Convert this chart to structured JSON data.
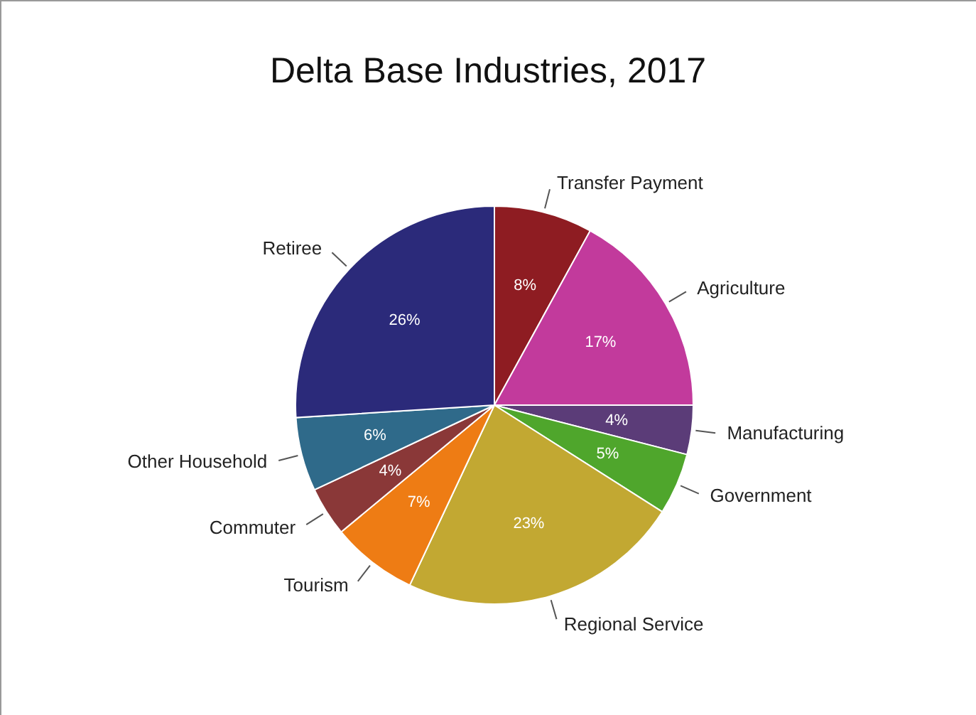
{
  "chart_data": {
    "type": "pie",
    "title": "Delta Base Industries, 2017",
    "categories": [
      "Transfer Payment",
      "Agriculture",
      "Manufacturing",
      "Government",
      "Regional Service",
      "Tourism",
      "Commuter",
      "Other Household",
      "Retiree"
    ],
    "values": [
      8,
      17,
      4,
      5,
      23,
      7,
      4,
      6,
      26
    ],
    "value_labels": [
      "8%",
      "17%",
      "4%",
      "5%",
      "23%",
      "7%",
      "4%",
      "6%",
      "26%"
    ],
    "colors": [
      "#8e1c22",
      "#c23a9c",
      "#5b3c78",
      "#4fa62c",
      "#c2a832",
      "#ee7c14",
      "#8a3838",
      "#2f6a8a",
      "#2b2a7a"
    ]
  }
}
